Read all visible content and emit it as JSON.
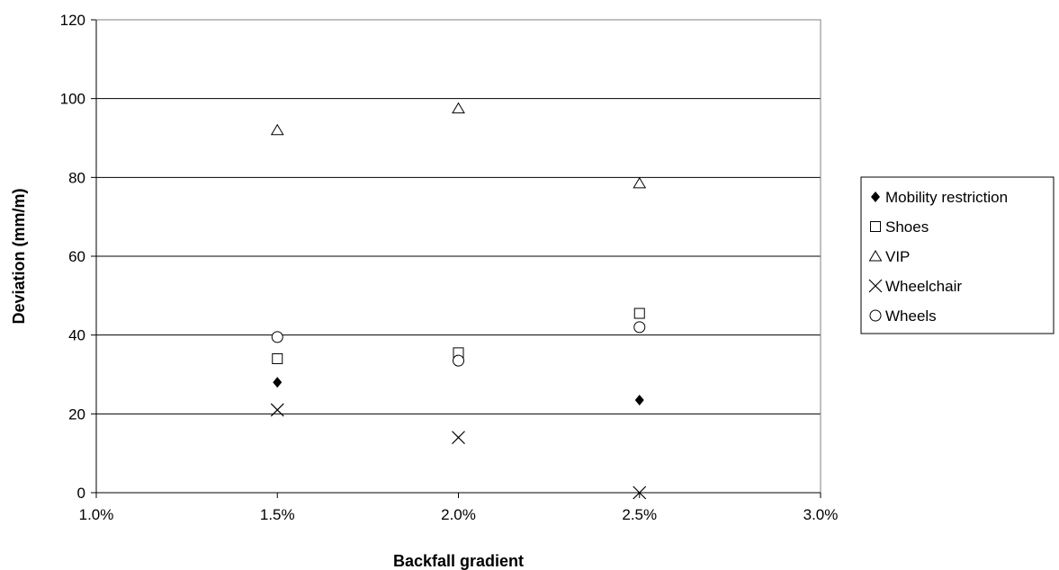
{
  "chart_data": {
    "type": "scatter",
    "title": "",
    "xlabel": "Backfall gradient",
    "ylabel": "Deviation (mm/m)",
    "xlim": [
      1.0,
      3.0
    ],
    "ylim": [
      0,
      120
    ],
    "x_ticks": [
      "1.0%",
      "1.5%",
      "2.0%",
      "2.5%",
      "3.0%"
    ],
    "y_ticks": [
      "0",
      "20",
      "40",
      "60",
      "80",
      "100",
      "120"
    ],
    "x_unit": "%",
    "grid": "horizontal",
    "legend_position": "right",
    "series": [
      {
        "name": "Mobility restriction",
        "marker": "filled-diamond",
        "points": [
          [
            1.5,
            28
          ],
          [
            2.0,
            35
          ],
          [
            2.5,
            23.5
          ]
        ]
      },
      {
        "name": "Shoes",
        "marker": "open-square",
        "points": [
          [
            1.5,
            34
          ],
          [
            2.0,
            35.5
          ],
          [
            2.5,
            45.5
          ]
        ]
      },
      {
        "name": "VIP",
        "marker": "open-triangle",
        "points": [
          [
            1.5,
            92
          ],
          [
            2.0,
            97.5
          ],
          [
            2.5,
            78.5
          ]
        ]
      },
      {
        "name": "Wheelchair",
        "marker": "cross",
        "points": [
          [
            1.5,
            21
          ],
          [
            2.0,
            14
          ],
          [
            2.5,
            0
          ]
        ]
      },
      {
        "name": "Wheels",
        "marker": "open-circle",
        "points": [
          [
            1.5,
            39.5
          ],
          [
            2.0,
            33.5
          ],
          [
            2.5,
            42
          ]
        ]
      }
    ],
    "colors": {
      "marker": "#000000",
      "grid": "#000000",
      "background": "#ffffff"
    }
  }
}
